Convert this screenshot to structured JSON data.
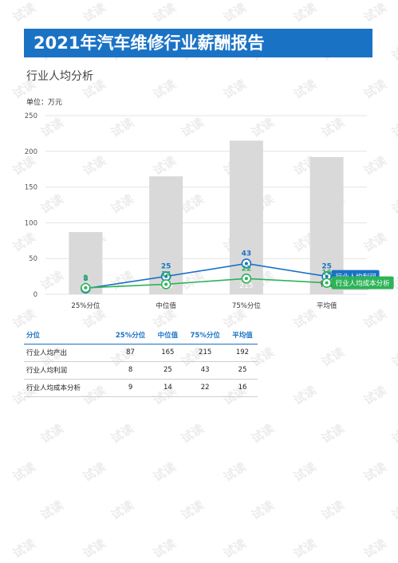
{
  "header": {
    "title": "2021年汽车维修行业薪酬报告"
  },
  "section": {
    "title": "行业人均分析",
    "unit_label": "单位：万元"
  },
  "watermark": {
    "text": "试读"
  },
  "colors": {
    "banner": "#1a72c5",
    "bar": "#d9d9d9",
    "profit": "#1a72c5",
    "cost": "#2db358"
  },
  "chart_data": {
    "type": "bar",
    "categories": [
      "25%分位",
      "中位值",
      "75%分位",
      "平均值"
    ],
    "ylim": [
      0,
      250
    ],
    "yticks": [
      0,
      50,
      100,
      150,
      200,
      250
    ],
    "bar_series": {
      "name": "行业人均产出",
      "values": [
        87,
        165,
        215,
        192
      ]
    },
    "line_series": [
      {
        "name": "行业人均利润",
        "values": [
          8,
          25,
          43,
          25
        ],
        "color": "#1a72c5"
      },
      {
        "name": "行业人均成本分析",
        "values": [
          9,
          14,
          22,
          16
        ],
        "color": "#2db358"
      }
    ]
  },
  "table": {
    "headers": [
      "分位",
      "25%分位",
      "中位值",
      "75%分位",
      "平均值"
    ],
    "rows": [
      [
        "行业人均产出",
        "87",
        "165",
        "215",
        "192"
      ],
      [
        "行业人均利润",
        "8",
        "25",
        "43",
        "25"
      ],
      [
        "行业人均成本分析",
        "9",
        "14",
        "22",
        "16"
      ]
    ]
  }
}
